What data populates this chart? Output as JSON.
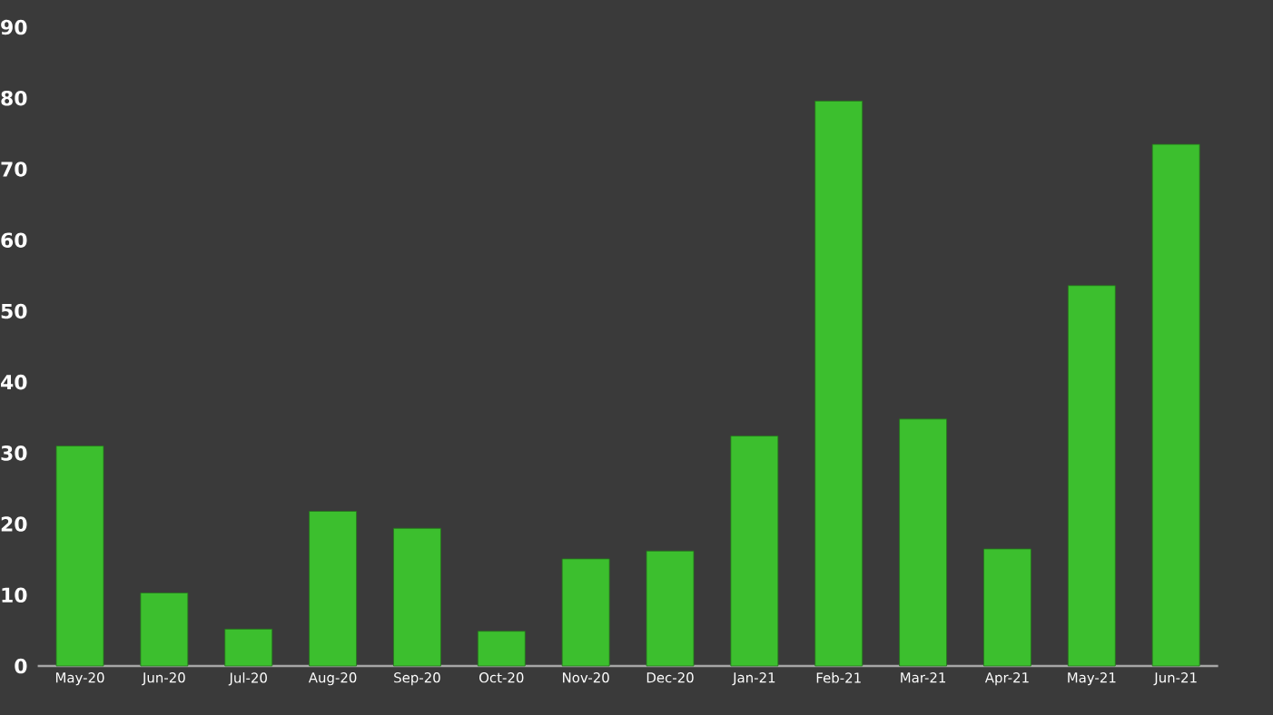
{
  "chart_data": {
    "type": "bar",
    "categories": [
      "May-20",
      "Jun-20",
      "Jul-20",
      "Aug-20",
      "Sep-20",
      "Oct-20",
      "Nov-20",
      "Dec-20",
      "Jan-21",
      "Feb-21",
      "Mar-21",
      "Apr-21",
      "May-21",
      "Jun-21"
    ],
    "values": [
      31,
      10.3,
      5.2,
      21.8,
      19.4,
      4.9,
      15.1,
      16.2,
      32.4,
      79.6,
      34.8,
      16.5,
      53.6,
      73.5
    ],
    "color": "#3cbf2e",
    "ylim": [
      0,
      90
    ],
    "yticks": [
      0,
      10,
      20,
      30,
      40,
      50,
      60,
      70,
      80,
      90
    ]
  }
}
